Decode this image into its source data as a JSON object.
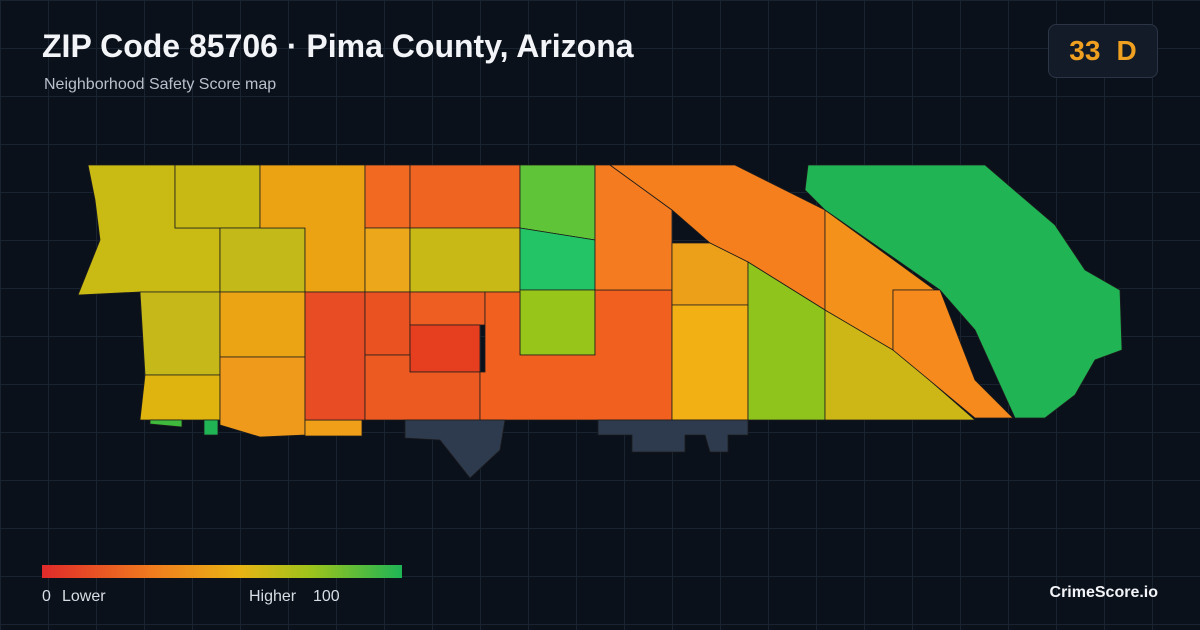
{
  "header": {
    "title": "ZIP Code 85706 · Pima County, Arizona",
    "subtitle": "Neighborhood Safety Score map"
  },
  "score": {
    "value": 33,
    "grade": "D"
  },
  "legend": {
    "min": 0,
    "min_label": "Lower",
    "max_label": "Higher",
    "max": 100
  },
  "footer": {
    "brand": "CrimeScore.io"
  }
}
